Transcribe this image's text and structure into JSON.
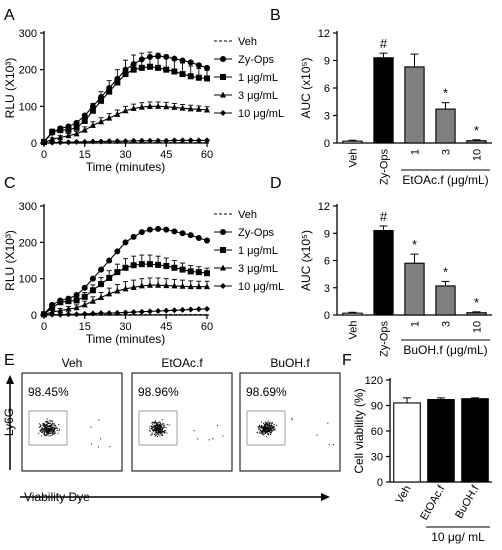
{
  "panels": {
    "A": "A",
    "B": "B",
    "C": "C",
    "D": "D",
    "E": "E",
    "F": "F"
  },
  "chart_data": [
    {
      "panel": "A",
      "type": "line",
      "x": [
        0,
        3,
        6,
        9,
        12,
        15,
        18,
        21,
        24,
        27,
        30,
        33,
        36,
        39,
        42,
        45,
        48,
        51,
        54,
        57,
        60
      ],
      "xlabel": "Time (minutes)",
      "ylabel": "RLU (X10³)",
      "xlim": [
        0,
        60
      ],
      "ylim": [
        0,
        300
      ],
      "xticks": [
        "0",
        "15",
        "30",
        "45",
        "60"
      ],
      "yticks": [
        "0",
        "100",
        "200",
        "300"
      ],
      "legend_position": "right",
      "series": [
        {
          "name": "Veh",
          "marker": "dash",
          "values": [
            0,
            0,
            0,
            0,
            0,
            0,
            1,
            1,
            1,
            1,
            1,
            1,
            1,
            1,
            1,
            1,
            1,
            1,
            1,
            1,
            1
          ]
        },
        {
          "name": "Zy-Ops",
          "marker": "circle",
          "values": [
            2,
            28,
            40,
            45,
            55,
            75,
            100,
            125,
            150,
            175,
            200,
            215,
            228,
            235,
            237,
            235,
            230,
            225,
            220,
            212,
            205
          ]
        },
        {
          "name": "1 μg/mL",
          "marker": "square",
          "values": [
            3,
            30,
            35,
            36,
            42,
            60,
            88,
            115,
            140,
            165,
            188,
            200,
            205,
            208,
            205,
            200,
            195,
            188,
            182,
            178,
            176
          ],
          "err": [
            3,
            8,
            10,
            10,
            12,
            15,
            20,
            25,
            30,
            35,
            38,
            40,
            40,
            40,
            40,
            38,
            35,
            30,
            28,
            25,
            22
          ]
        },
        {
          "name": "3 μg/mL",
          "marker": "triangle",
          "values": [
            1,
            10,
            15,
            20,
            25,
            35,
            48,
            58,
            68,
            78,
            88,
            94,
            98,
            100,
            100,
            99,
            97,
            95,
            93,
            92,
            90
          ],
          "err": [
            1,
            4,
            5,
            6,
            7,
            9,
            10,
            11,
            12,
            12,
            12,
            12,
            12,
            12,
            12,
            12,
            11,
            10,
            10,
            9,
            9
          ]
        },
        {
          "name": "10 μg/mL",
          "marker": "diamond",
          "values": [
            0,
            1,
            2,
            2,
            3,
            3,
            4,
            4,
            5,
            5,
            5,
            6,
            6,
            6,
            6,
            6,
            7,
            7,
            7,
            7,
            7
          ]
        }
      ]
    },
    {
      "panel": "B",
      "type": "bar",
      "categories": [
        "Veh",
        "Zy-Ops",
        "1",
        "3",
        "10"
      ],
      "values": [
        0.2,
        9.3,
        8.3,
        3.7,
        0.25
      ],
      "err": [
        0.1,
        0.5,
        1.4,
        0.7,
        0.1
      ],
      "colors": [
        "#ffffff",
        "#000000",
        "#808080",
        "#808080",
        "#808080"
      ],
      "annotations": [
        "",
        "#",
        "",
        "*",
        "*"
      ],
      "ylabel": "AUC (x10⁵)",
      "ylim": [
        0,
        12
      ],
      "yticks": [
        "0",
        "3",
        "6",
        "9",
        "12"
      ],
      "group_label": "EtOAc.f (μg/mL)"
    },
    {
      "panel": "C",
      "type": "line",
      "x": [
        0,
        3,
        6,
        9,
        12,
        15,
        18,
        21,
        24,
        27,
        30,
        33,
        36,
        39,
        42,
        45,
        48,
        51,
        54,
        57,
        60
      ],
      "xlabel": "Time (minutes)",
      "ylabel": "RLU (X10³)",
      "xlim": [
        0,
        60
      ],
      "ylim": [
        0,
        300
      ],
      "xticks": [
        "0",
        "15",
        "30",
        "45",
        "60"
      ],
      "yticks": [
        "0",
        "100",
        "200",
        "300"
      ],
      "legend_position": "right",
      "series": [
        {
          "name": "Veh",
          "marker": "dash",
          "values": [
            0,
            0,
            0,
            0,
            0,
            0,
            1,
            1,
            1,
            1,
            1,
            1,
            1,
            1,
            1,
            1,
            1,
            1,
            1,
            1,
            1
          ]
        },
        {
          "name": "Zy-Ops",
          "marker": "circle",
          "values": [
            2,
            28,
            40,
            45,
            55,
            75,
            100,
            125,
            150,
            175,
            200,
            215,
            228,
            235,
            237,
            235,
            230,
            225,
            220,
            212,
            205
          ]
        },
        {
          "name": "1 μg/mL",
          "marker": "square",
          "values": [
            2,
            20,
            35,
            38,
            40,
            50,
            68,
            85,
            102,
            118,
            130,
            137,
            140,
            140,
            138,
            135,
            130,
            125,
            120,
            118,
            115
          ],
          "err": [
            2,
            6,
            8,
            8,
            10,
            12,
            15,
            18,
            20,
            22,
            25,
            25,
            25,
            25,
            24,
            22,
            20,
            18,
            16,
            15,
            14
          ]
        },
        {
          "name": "3 μg/mL",
          "marker": "triangle",
          "values": [
            1,
            8,
            12,
            16,
            20,
            28,
            38,
            48,
            58,
            66,
            72,
            76,
            80,
            82,
            82,
            81,
            80,
            79,
            78,
            78,
            78
          ],
          "err": [
            1,
            5,
            6,
            7,
            8,
            10,
            12,
            14,
            16,
            18,
            20,
            20,
            20,
            20,
            20,
            19,
            18,
            17,
            16,
            15,
            15
          ]
        },
        {
          "name": "10 μg/mL",
          "marker": "diamond",
          "values": [
            0,
            1,
            1,
            2,
            2,
            3,
            4,
            5,
            5,
            6,
            7,
            8,
            9,
            10,
            11,
            12,
            13,
            14,
            15,
            16,
            17
          ]
        }
      ]
    },
    {
      "panel": "D",
      "type": "bar",
      "categories": [
        "Veh",
        "Zy-Ops",
        "1",
        "3",
        "10"
      ],
      "values": [
        0.2,
        9.3,
        5.7,
        3.2,
        0.25
      ],
      "err": [
        0.1,
        0.5,
        1.0,
        0.5,
        0.1
      ],
      "colors": [
        "#ffffff",
        "#000000",
        "#808080",
        "#808080",
        "#808080"
      ],
      "annotations": [
        "",
        "#",
        "*",
        "*",
        "*"
      ],
      "ylabel": "AUC (x10⁵)",
      "ylim": [
        0,
        12
      ],
      "yticks": [
        "0",
        "3",
        "6",
        "9",
        "12"
      ],
      "group_label": "BuOH.f (μg/mL)"
    },
    {
      "panel": "E",
      "type": "scatter",
      "plots": [
        {
          "title": "Veh",
          "percent": "98.45%"
        },
        {
          "title": "EtOAc.f",
          "percent": "98.96%"
        },
        {
          "title": "BuOH.f",
          "percent": "98.69%"
        }
      ],
      "ylabel": "Ly6G",
      "xlabel": "Viability Dye"
    },
    {
      "panel": "F",
      "type": "bar",
      "categories": [
        "Veh",
        "EtOAc.f",
        "BuOH.f"
      ],
      "values": [
        93,
        97,
        98
      ],
      "err": [
        6,
        2,
        1
      ],
      "colors": [
        "#ffffff",
        "#000000",
        "#000000"
      ],
      "ylabel": "Cell viability (%)",
      "ylim": [
        0,
        120
      ],
      "yticks": [
        "0",
        "30",
        "60",
        "90",
        "120"
      ],
      "group_label": "10 μg/ mL"
    }
  ]
}
